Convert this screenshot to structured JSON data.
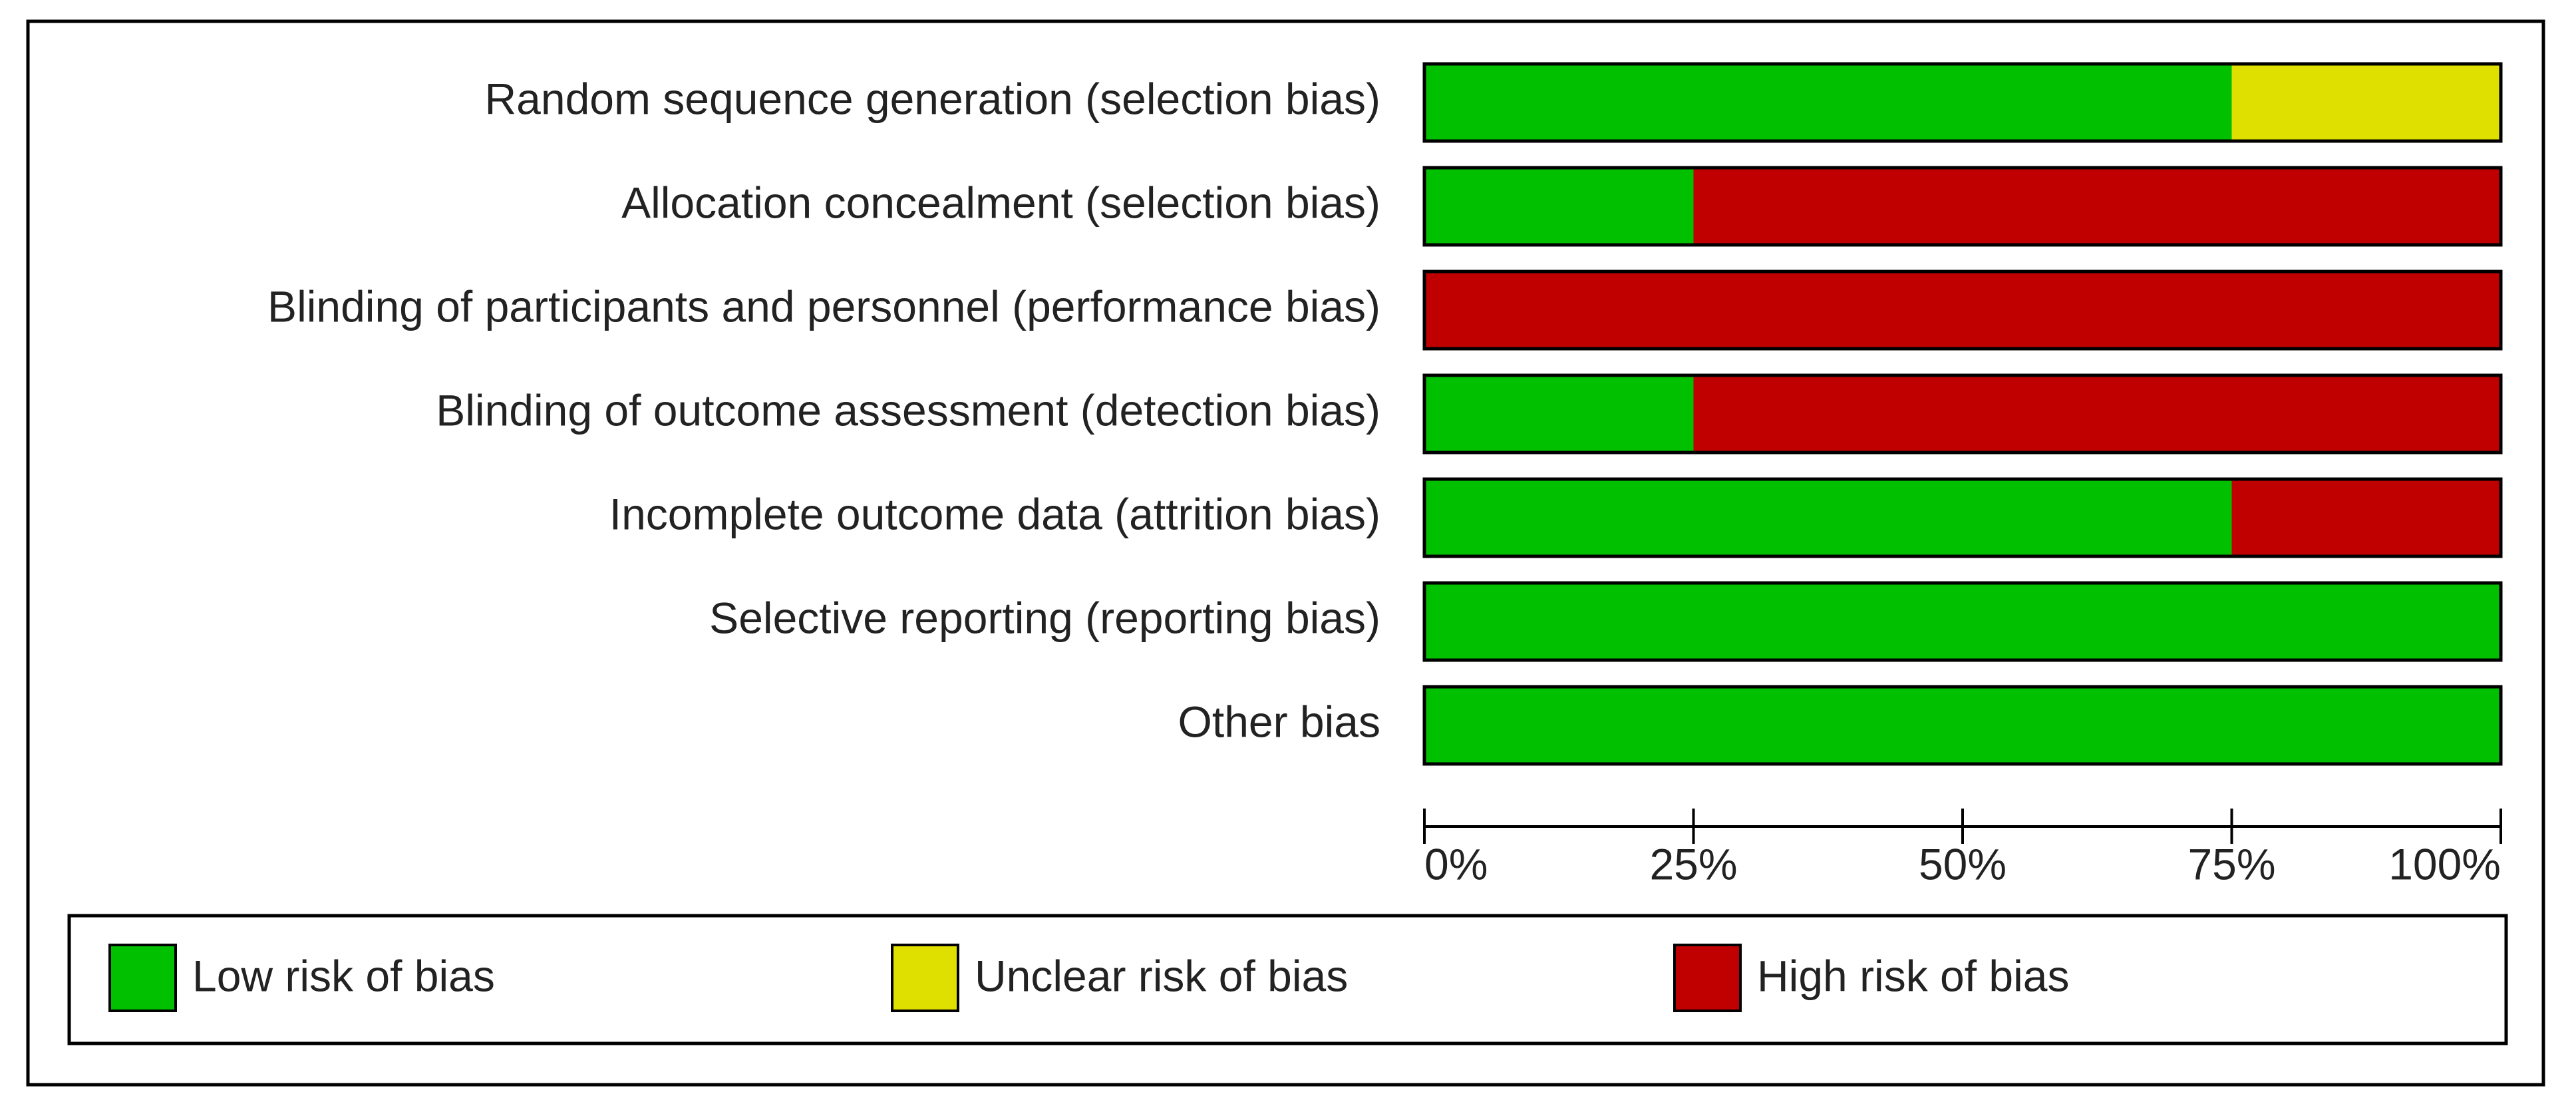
{
  "chart_data": {
    "type": "stacked-bar-horizontal",
    "categories": [
      "Random sequence generation (selection bias)",
      "Allocation concealment (selection bias)",
      "Blinding of participants and personnel (performance bias)",
      "Blinding of outcome assessment (detection bias)",
      "Incomplete outcome data (attrition bias)",
      "Selective reporting (reporting bias)",
      "Other bias"
    ],
    "series": [
      {
        "name": "Low risk of bias",
        "color": "#00c000",
        "values": [
          75,
          25,
          0,
          25,
          75,
          100,
          100
        ]
      },
      {
        "name": "Unclear risk of bias",
        "color": "#e0e000",
        "values": [
          25,
          0,
          0,
          0,
          0,
          0,
          0
        ]
      },
      {
        "name": "High risk of bias",
        "color": "#c00000",
        "values": [
          0,
          75,
          100,
          75,
          25,
          0,
          0
        ]
      }
    ],
    "xlim": [
      0,
      100
    ],
    "xticks": [
      {
        "value": 0,
        "label": "0%"
      },
      {
        "value": 25,
        "label": "25%"
      },
      {
        "value": 50,
        "label": "50%"
      },
      {
        "value": 75,
        "label": "75%"
      },
      {
        "value": 100,
        "label": "100%"
      }
    ],
    "legend": "bottom"
  }
}
